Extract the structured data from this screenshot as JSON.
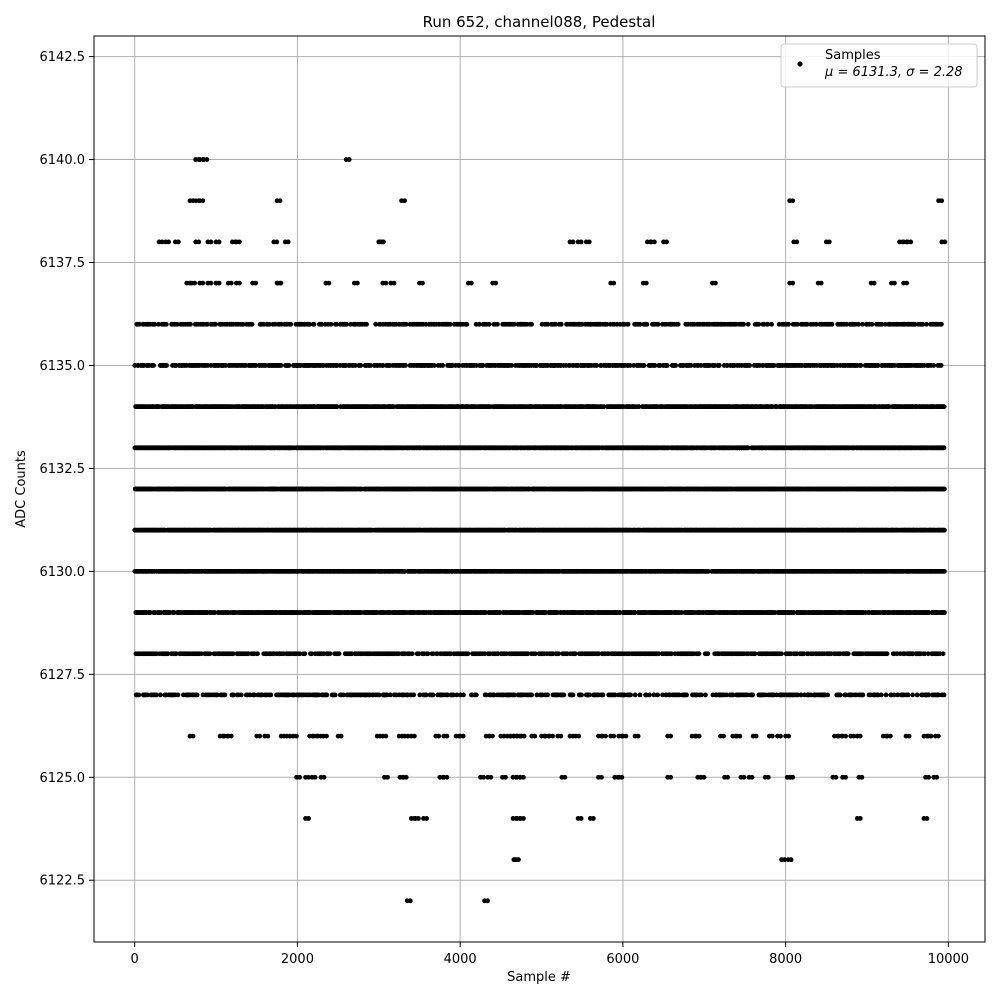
{
  "chart_data": {
    "type": "scatter",
    "title": "Run 652, channel088, Pedestal",
    "xlabel": "Sample #",
    "ylabel": "ADC Counts",
    "xlim": [
      -500,
      10450
    ],
    "ylim": [
      6121.0,
      6143.0
    ],
    "xticks": [
      0,
      2000,
      4000,
      6000,
      8000,
      10000
    ],
    "xtick_labels": [
      "0",
      "2000",
      "4000",
      "6000",
      "8000",
      "10000"
    ],
    "yticks": [
      6122.5,
      6125.0,
      6127.5,
      6130.0,
      6132.5,
      6135.0,
      6137.5,
      6140.0,
      6142.5
    ],
    "ytick_labels": [
      "6122.5",
      "6125.0",
      "6127.5",
      "6130.0",
      "6132.5",
      "6135.0",
      "6137.5",
      "6140.0",
      "6142.5"
    ],
    "grid": true,
    "marker_color": "#000000",
    "legend": {
      "placement": "top-right",
      "series_label": "Samples",
      "stats_label": "μ = 6131.3, σ = 2.28"
    },
    "series": [
      {
        "name": "Samples",
        "dense_bands": [
          6127,
          6128,
          6129,
          6130,
          6131,
          6132,
          6133,
          6134,
          6135,
          6136
        ],
        "points": [
          [
            3350,
            6122
          ],
          [
            4300,
            6122
          ],
          [
            4660,
            6123
          ],
          [
            4680,
            6123
          ],
          [
            7950,
            6123
          ],
          [
            8030,
            6123
          ],
          [
            2100,
            6124
          ],
          [
            3400,
            6124
          ],
          [
            3450,
            6124
          ],
          [
            3550,
            6124
          ],
          [
            4650,
            6124
          ],
          [
            4700,
            6124
          ],
          [
            4740,
            6124
          ],
          [
            5450,
            6124
          ],
          [
            5600,
            6124
          ],
          [
            8880,
            6124
          ],
          [
            9700,
            6124
          ],
          [
            1990,
            6125
          ],
          [
            2100,
            6125
          ],
          [
            2180,
            6125
          ],
          [
            2290,
            6125
          ],
          [
            3070,
            6125
          ],
          [
            3260,
            6125
          ],
          [
            3300,
            6125
          ],
          [
            3750,
            6125
          ],
          [
            3800,
            6125
          ],
          [
            4250,
            6125
          ],
          [
            4340,
            6125
          ],
          [
            4520,
            6125
          ],
          [
            4650,
            6125
          ],
          [
            4700,
            6125
          ],
          [
            4740,
            6125
          ],
          [
            5250,
            6125
          ],
          [
            5700,
            6125
          ],
          [
            5900,
            6125
          ],
          [
            5950,
            6125
          ],
          [
            6550,
            6125
          ],
          [
            6920,
            6125
          ],
          [
            6960,
            6125
          ],
          [
            7250,
            6125
          ],
          [
            7450,
            6125
          ],
          [
            7550,
            6125
          ],
          [
            7750,
            6125
          ],
          [
            8020,
            6125
          ],
          [
            8050,
            6125
          ],
          [
            8580,
            6125
          ],
          [
            8700,
            6125
          ],
          [
            8900,
            6125
          ],
          [
            9720,
            6125
          ],
          [
            9820,
            6125
          ],
          [
            680,
            6126
          ],
          [
            1050,
            6126
          ],
          [
            1100,
            6126
          ],
          [
            1150,
            6126
          ],
          [
            1500,
            6126
          ],
          [
            1600,
            6126
          ],
          [
            1800,
            6126
          ],
          [
            1870,
            6126
          ],
          [
            1950,
            6126
          ],
          [
            2150,
            6126
          ],
          [
            2200,
            6126
          ],
          [
            2250,
            6126
          ],
          [
            2320,
            6126
          ],
          [
            2500,
            6126
          ],
          [
            2980,
            6126
          ],
          [
            3050,
            6126
          ],
          [
            3250,
            6126
          ],
          [
            3320,
            6126
          ],
          [
            3400,
            6126
          ],
          [
            3700,
            6126
          ],
          [
            3800,
            6126
          ],
          [
            3950,
            6126
          ],
          [
            4000,
            6126
          ],
          [
            4320,
            6126
          ],
          [
            4360,
            6126
          ],
          [
            4500,
            6126
          ],
          [
            4580,
            6126
          ],
          [
            4620,
            6126
          ],
          [
            4660,
            6126
          ],
          [
            4700,
            6126
          ],
          [
            4750,
            6126
          ],
          [
            4880,
            6126
          ],
          [
            5000,
            6126
          ],
          [
            5050,
            6126
          ],
          [
            5100,
            6126
          ],
          [
            5200,
            6126
          ],
          [
            5350,
            6126
          ],
          [
            5420,
            6126
          ],
          [
            5700,
            6126
          ],
          [
            5750,
            6126
          ],
          [
            5850,
            6126
          ],
          [
            5950,
            6126
          ],
          [
            6000,
            6126
          ],
          [
            6150,
            6126
          ],
          [
            6550,
            6126
          ],
          [
            6850,
            6126
          ],
          [
            6900,
            6126
          ],
          [
            7200,
            6126
          ],
          [
            7350,
            6126
          ],
          [
            7400,
            6126
          ],
          [
            7600,
            6126
          ],
          [
            7800,
            6126
          ],
          [
            7900,
            6126
          ],
          [
            8000,
            6126
          ],
          [
            8600,
            6126
          ],
          [
            8650,
            6126
          ],
          [
            8700,
            6126
          ],
          [
            8800,
            6126
          ],
          [
            8880,
            6126
          ],
          [
            9200,
            6126
          ],
          [
            9250,
            6126
          ],
          [
            9480,
            6126
          ],
          [
            9700,
            6126
          ],
          [
            9750,
            6126
          ],
          [
            9840,
            6126
          ],
          [
            640,
            6137
          ],
          [
            700,
            6137
          ],
          [
            800,
            6137
          ],
          [
            900,
            6137
          ],
          [
            1000,
            6137
          ],
          [
            1150,
            6137
          ],
          [
            1250,
            6137
          ],
          [
            1450,
            6137
          ],
          [
            1750,
            6137
          ],
          [
            1760,
            6137
          ],
          [
            2350,
            6137
          ],
          [
            2700,
            6137
          ],
          [
            3050,
            6137
          ],
          [
            3150,
            6137
          ],
          [
            3500,
            6137
          ],
          [
            4100,
            6137
          ],
          [
            4400,
            6137
          ],
          [
            5850,
            6137
          ],
          [
            6250,
            6137
          ],
          [
            7100,
            6137
          ],
          [
            8050,
            6137
          ],
          [
            8400,
            6137
          ],
          [
            9050,
            6137
          ],
          [
            9300,
            6137
          ],
          [
            9450,
            6137
          ],
          [
            300,
            6138
          ],
          [
            380,
            6138
          ],
          [
            500,
            6138
          ],
          [
            750,
            6138
          ],
          [
            900,
            6138
          ],
          [
            1000,
            6138
          ],
          [
            1200,
            6138
          ],
          [
            1250,
            6138
          ],
          [
            1710,
            6138
          ],
          [
            1850,
            6138
          ],
          [
            3000,
            6138
          ],
          [
            3020,
            6138
          ],
          [
            5350,
            6138
          ],
          [
            5450,
            6138
          ],
          [
            5550,
            6138
          ],
          [
            6300,
            6138
          ],
          [
            6350,
            6138
          ],
          [
            6500,
            6138
          ],
          [
            8100,
            6138
          ],
          [
            8500,
            6138
          ],
          [
            9400,
            6138
          ],
          [
            9450,
            6138
          ],
          [
            9500,
            6138
          ],
          [
            9920,
            6138
          ],
          [
            680,
            6139
          ],
          [
            750,
            6139
          ],
          [
            800,
            6139
          ],
          [
            1750,
            6139
          ],
          [
            3280,
            6139
          ],
          [
            8050,
            6139
          ],
          [
            9880,
            6139
          ],
          [
            750,
            6140
          ],
          [
            800,
            6140
          ],
          [
            850,
            6140
          ],
          [
            2600,
            6140
          ]
        ]
      }
    ]
  }
}
